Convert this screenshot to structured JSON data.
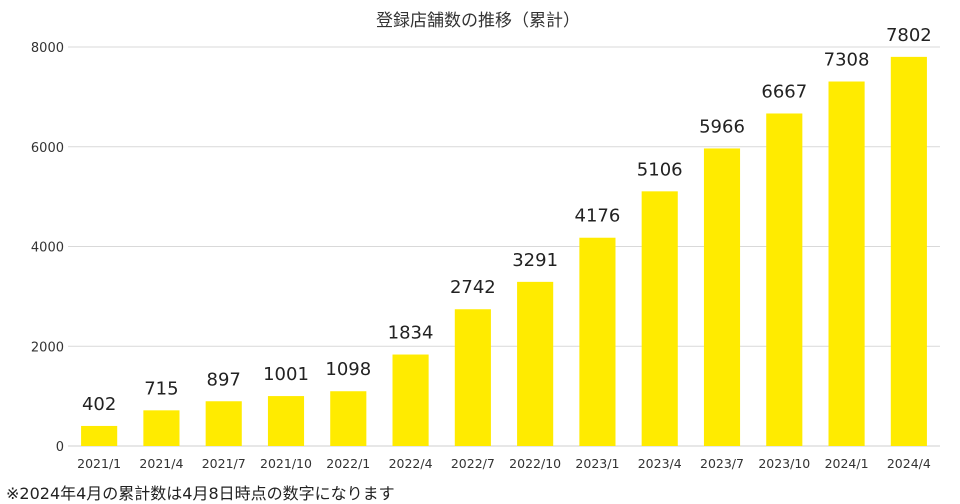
{
  "chart_data": {
    "type": "bar",
    "title": "登録店舗数の推移（累計）",
    "categories": [
      "2021/1",
      "2021/4",
      "2021/7",
      "2021/10",
      "2022/1",
      "2022/4",
      "2022/7",
      "2022/10",
      "2023/1",
      "2023/4",
      "2023/7",
      "2023/10",
      "2024/1",
      "2024/4"
    ],
    "values": [
      402,
      715,
      897,
      1001,
      1098,
      1834,
      2742,
      3291,
      4176,
      5106,
      5966,
      6667,
      7308,
      7802
    ],
    "ylim": [
      0,
      8000
    ],
    "yticks": [
      0,
      2000,
      4000,
      6000,
      8000
    ],
    "grid": true,
    "bar_color": "#FFEB00"
  },
  "footnote": "※2024年4月の累計数は4月8日時点の数字になります"
}
